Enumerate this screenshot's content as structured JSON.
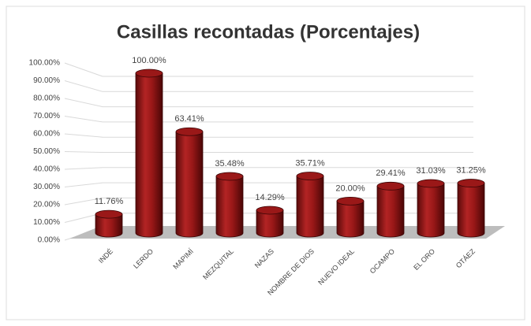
{
  "chart_data": {
    "type": "bar",
    "title": "Casillas recontadas (Porcentajes)",
    "categories": [
      "INDÉ",
      "LERDO",
      "MAPIMÍ",
      "MEZQUITAL",
      "NAZAS",
      "NOMBRE DE DIOS",
      "NUEVO IDEAL",
      "OCAMPO",
      "EL ORO",
      "OTÁEZ"
    ],
    "values": [
      11.76,
      100,
      63.41,
      35.48,
      14.29,
      35.71,
      20,
      29.41,
      31.03,
      31.25
    ],
    "value_labels": [
      "11.76%",
      "100.00%",
      "63.41%",
      "35.48%",
      "14.29%",
      "35.71%",
      "20.00%",
      "29.41%",
      "31.03%",
      "31.25%"
    ],
    "color": "#9a1818",
    "ylim": [
      0,
      100
    ],
    "yticks": [
      {
        "value": 0,
        "label": "0.00%"
      },
      {
        "value": 10,
        "label": "10.00%"
      },
      {
        "value": 20,
        "label": "20.00%"
      },
      {
        "value": 30,
        "label": "30.00%"
      },
      {
        "value": 40,
        "label": "40.00%"
      },
      {
        "value": 50,
        "label": "50.00%"
      },
      {
        "value": 60,
        "label": "60.00%"
      },
      {
        "value": 70,
        "label": "70.00%"
      },
      {
        "value": 80,
        "label": "80.00%"
      },
      {
        "value": 90,
        "label": "90.00%"
      },
      {
        "value": 100,
        "label": "100.00%"
      }
    ],
    "grid": true
  }
}
